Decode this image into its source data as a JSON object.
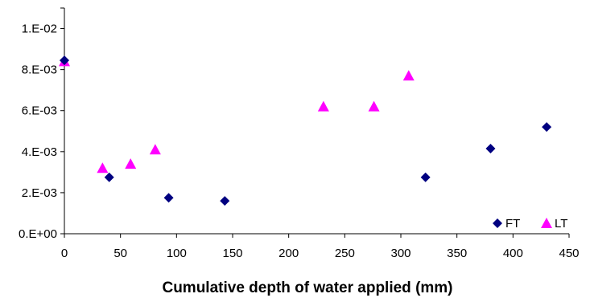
{
  "chart_data": {
    "type": "scatter",
    "title": "",
    "xlabel": "Cumulative depth of water applied (mm)",
    "ylabel": "",
    "xlim": [
      0,
      450
    ],
    "ylim": [
      0,
      0.011
    ],
    "x_ticks": [
      0,
      50,
      100,
      150,
      200,
      250,
      300,
      350,
      400,
      450
    ],
    "x_tick_labels": [
      "0",
      "50",
      "100",
      "150",
      "200",
      "250",
      "300",
      "350",
      "400",
      "450"
    ],
    "y_ticks": [
      0,
      0.002,
      0.004,
      0.006,
      0.008,
      0.01
    ],
    "y_tick_labels": [
      "0.E+00",
      "2.E-03",
      "4.E-03",
      "6.E-03",
      "8.E-03",
      "1.E-02"
    ],
    "grid": false,
    "legend_position": "bottom-right",
    "series": [
      {
        "name": "FT",
        "marker": "diamond",
        "color": "#000080",
        "points": [
          {
            "x": 0,
            "y": 0.00845
          },
          {
            "x": 40,
            "y": 0.00275
          },
          {
            "x": 93,
            "y": 0.00175
          },
          {
            "x": 143,
            "y": 0.0016
          },
          {
            "x": 322,
            "y": 0.00275
          },
          {
            "x": 380,
            "y": 0.00415
          },
          {
            "x": 430,
            "y": 0.0052
          }
        ]
      },
      {
        "name": "LT",
        "marker": "triangle",
        "color": "#FF00FF",
        "points": [
          {
            "x": 0,
            "y": 0.0084
          },
          {
            "x": 34,
            "y": 0.0032
          },
          {
            "x": 59,
            "y": 0.0034
          },
          {
            "x": 81,
            "y": 0.0041
          },
          {
            "x": 231,
            "y": 0.0062
          },
          {
            "x": 276,
            "y": 0.0062
          },
          {
            "x": 307,
            "y": 0.0077
          }
        ]
      }
    ]
  }
}
